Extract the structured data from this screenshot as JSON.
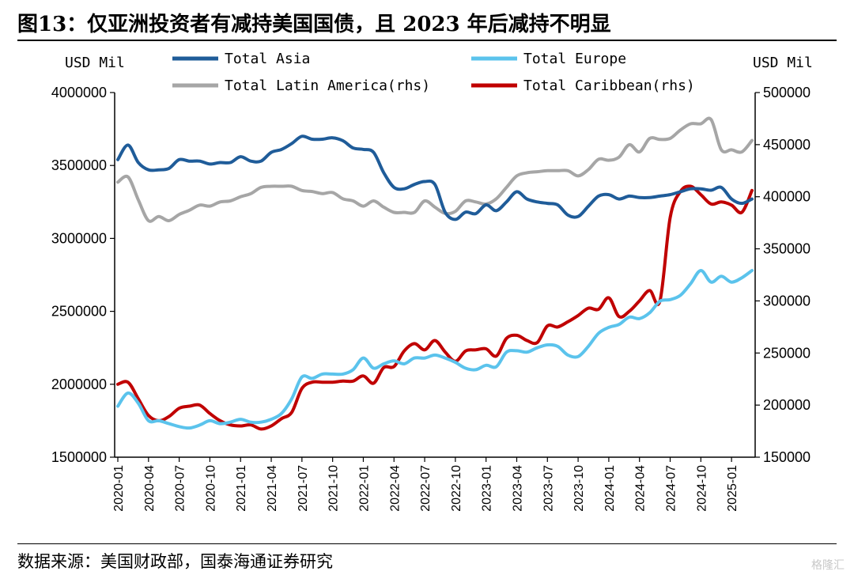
{
  "title": "图13：仅亚洲投资者有减持美国国债，且 2023 年后减持不明显",
  "source": "数据来源：美国财政部，国泰海通证券研究",
  "watermark": "格隆汇",
  "chart_data": {
    "type": "line",
    "y_left_unit": "USD Mil",
    "y_right_unit": "USD Mil",
    "ylim_left": [
      1500000,
      4000000
    ],
    "ylim_right": [
      150000,
      500000
    ],
    "yticks_left": [
      1500000,
      2000000,
      2500000,
      3000000,
      3500000,
      4000000
    ],
    "yticks_right": [
      150000,
      200000,
      250000,
      300000,
      350000,
      400000,
      450000,
      500000
    ],
    "x_tick_labels": [
      "2020-01",
      "2020-04",
      "2020-07",
      "2020-10",
      "2021-01",
      "2021-04",
      "2021-07",
      "2021-10",
      "2022-01",
      "2022-04",
      "2022-07",
      "2022-10",
      "2023-01",
      "2023-04",
      "2023-07",
      "2023-10",
      "2024-01",
      "2024-04",
      "2024-07",
      "2024-10",
      "2025-01"
    ],
    "x": [
      "2020-01",
      "2020-02",
      "2020-03",
      "2020-04",
      "2020-05",
      "2020-06",
      "2020-07",
      "2020-08",
      "2020-09",
      "2020-10",
      "2020-11",
      "2020-12",
      "2021-01",
      "2021-02",
      "2021-03",
      "2021-04",
      "2021-05",
      "2021-06",
      "2021-07",
      "2021-08",
      "2021-09",
      "2021-10",
      "2021-11",
      "2021-12",
      "2022-01",
      "2022-02",
      "2022-03",
      "2022-04",
      "2022-05",
      "2022-06",
      "2022-07",
      "2022-08",
      "2022-09",
      "2022-10",
      "2022-11",
      "2022-12",
      "2023-01",
      "2023-02",
      "2023-03",
      "2023-04",
      "2023-05",
      "2023-06",
      "2023-07",
      "2023-08",
      "2023-09",
      "2023-10",
      "2023-11",
      "2023-12",
      "2024-01",
      "2024-02",
      "2024-03",
      "2024-04",
      "2024-05",
      "2024-06",
      "2024-07",
      "2024-08",
      "2024-09",
      "2024-10",
      "2024-11",
      "2024-12",
      "2025-01",
      "2025-02",
      "2025-03"
    ],
    "series": [
      {
        "name": "Total Asia",
        "axis": "left",
        "color": "#1f5c99",
        "values": [
          3540000,
          3640000,
          3520000,
          3470000,
          3470000,
          3480000,
          3540000,
          3530000,
          3530000,
          3510000,
          3520000,
          3520000,
          3560000,
          3530000,
          3530000,
          3590000,
          3610000,
          3650000,
          3700000,
          3680000,
          3680000,
          3690000,
          3670000,
          3620000,
          3610000,
          3590000,
          3450000,
          3350000,
          3340000,
          3370000,
          3390000,
          3370000,
          3180000,
          3130000,
          3180000,
          3170000,
          3230000,
          3190000,
          3250000,
          3320000,
          3270000,
          3250000,
          3240000,
          3230000,
          3160000,
          3150000,
          3220000,
          3290000,
          3300000,
          3270000,
          3290000,
          3280000,
          3280000,
          3290000,
          3300000,
          3320000,
          3340000,
          3340000,
          3330000,
          3350000,
          3270000,
          3240000,
          3270000
        ]
      },
      {
        "name": "Total Europe",
        "axis": "left",
        "color": "#5bc3ec",
        "values": [
          1850000,
          1940000,
          1870000,
          1750000,
          1750000,
          1730000,
          1710000,
          1700000,
          1720000,
          1750000,
          1730000,
          1740000,
          1760000,
          1740000,
          1740000,
          1760000,
          1800000,
          1900000,
          2050000,
          2040000,
          2070000,
          2070000,
          2070000,
          2100000,
          2180000,
          2110000,
          2140000,
          2160000,
          2140000,
          2180000,
          2180000,
          2200000,
          2180000,
          2150000,
          2110000,
          2100000,
          2130000,
          2120000,
          2220000,
          2230000,
          2220000,
          2250000,
          2270000,
          2260000,
          2200000,
          2190000,
          2260000,
          2350000,
          2390000,
          2410000,
          2460000,
          2450000,
          2490000,
          2570000,
          2580000,
          2610000,
          2690000,
          2780000,
          2700000,
          2740000,
          2700000,
          2730000,
          2780000
        ]
      },
      {
        "name": "Total Latin America(rhs)",
        "axis": "right",
        "color": "#a6a6a6",
        "values": [
          414000,
          419000,
          397000,
          377000,
          381000,
          377000,
          383000,
          387000,
          392000,
          391000,
          395000,
          396000,
          400000,
          403000,
          409000,
          410000,
          410000,
          410000,
          406000,
          405000,
          403000,
          404000,
          398000,
          396000,
          391000,
          396000,
          390000,
          385000,
          385000,
          385000,
          396000,
          390000,
          384000,
          386000,
          396000,
          395000,
          393000,
          398000,
          409000,
          420000,
          423000,
          424000,
          425000,
          425000,
          425000,
          420000,
          426000,
          436000,
          435000,
          438000,
          450000,
          443000,
          456000,
          455000,
          456000,
          464000,
          470000,
          470000,
          474000,
          445000,
          445000,
          443000,
          454000
        ]
      },
      {
        "name": "Total Caribbean(rhs)",
        "axis": "right",
        "color": "#c00000",
        "values": [
          220000,
          222000,
          206000,
          190000,
          185000,
          189000,
          197000,
          199000,
          200000,
          192000,
          185000,
          181000,
          180000,
          181000,
          177000,
          180000,
          187000,
          193000,
          216000,
          222000,
          222000,
          222000,
          223000,
          223000,
          228000,
          221000,
          236000,
          237000,
          252000,
          259000,
          253000,
          262000,
          251000,
          242000,
          252000,
          253000,
          254000,
          247000,
          264000,
          267000,
          262000,
          260000,
          276000,
          275000,
          280000,
          286000,
          293000,
          292000,
          303000,
          285000,
          290000,
          300000,
          310000,
          300000,
          380000,
          405000,
          410000,
          402000,
          393000,
          395000,
          392000,
          385000,
          406000
        ]
      }
    ]
  }
}
